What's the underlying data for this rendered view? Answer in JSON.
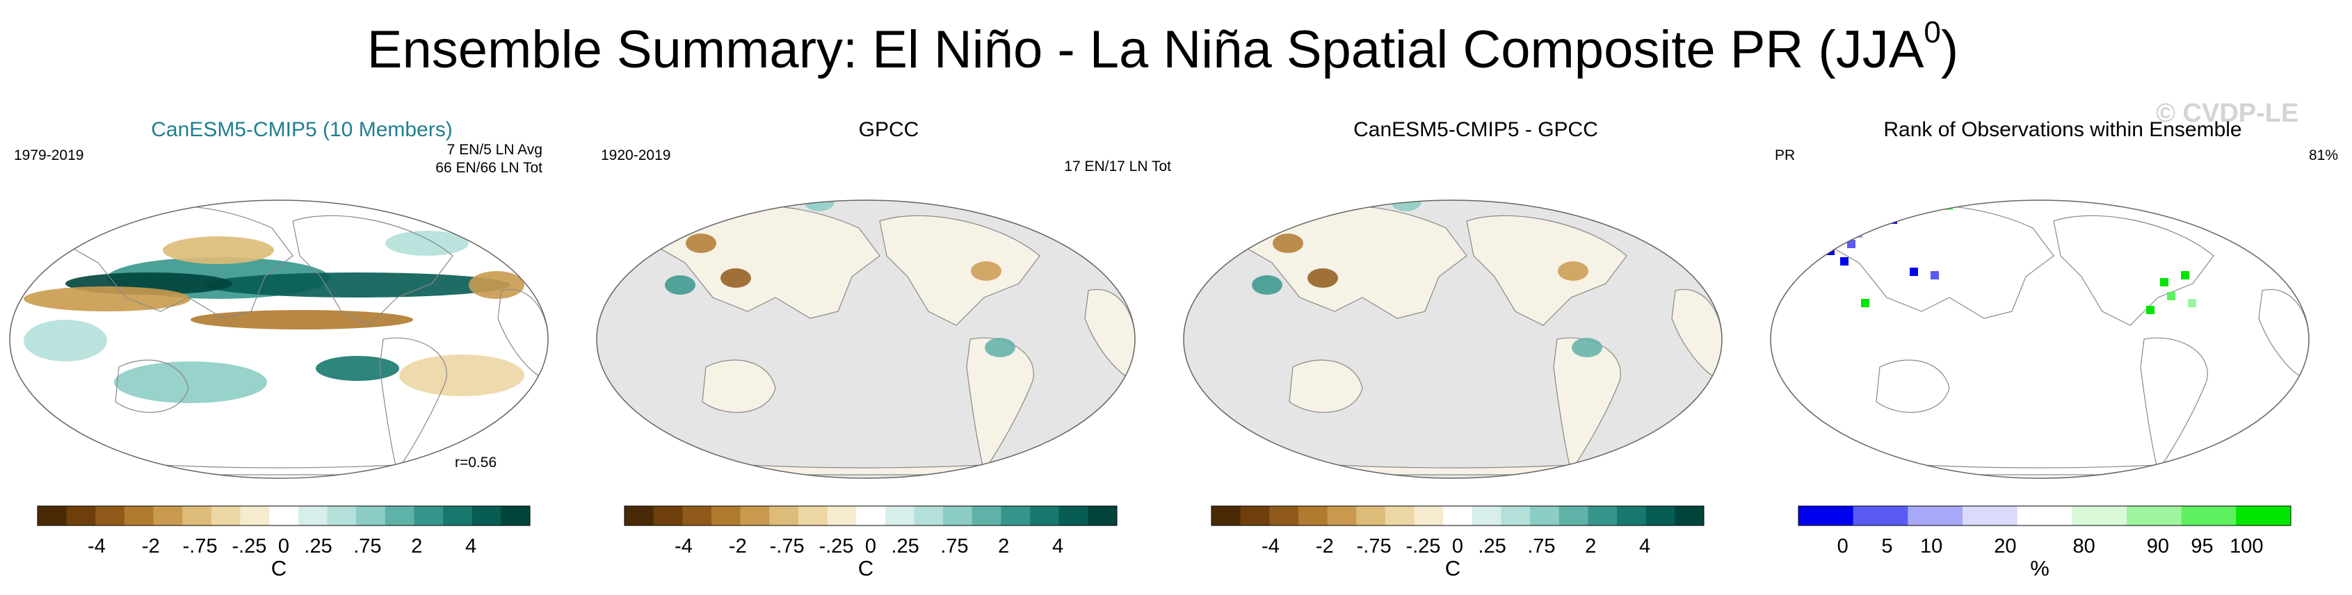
{
  "title_main": "Ensemble Summary: El Niño - La Niña Spatial Composite PR (JJA",
  "title_sup": "0",
  "title_close": ")",
  "copyright": "© CVDP-LE",
  "chart_data": [
    {
      "type": "heatmap",
      "title": "CanESM5-CMIP5 (10 Members)",
      "left_label": "1979-2019",
      "right_label_1": "7 EN/5 LN Avg",
      "right_label_2": "66 EN/66 LN Tot",
      "corr_label": "r=0.56",
      "colorbar_ticks": [
        "-4",
        "-2",
        "-.75",
        "-.25",
        "0",
        ".25",
        ".75",
        "2",
        "4"
      ],
      "colorbar_unit": "C",
      "colors": [
        "#4a2a06",
        "#6e3f0b",
        "#8f5a19",
        "#b07a2f",
        "#c99a4e",
        "#ddbb78",
        "#ecd6a3",
        "#f6ebcf",
        "#ffffff",
        "#d7eeeb",
        "#b4e0da",
        "#8ccdc5",
        "#5fb2a8",
        "#37968c",
        "#17786e",
        "#075c53",
        "#00443c"
      ]
    },
    {
      "type": "heatmap",
      "title": "GPCC",
      "left_label": "1920-2019",
      "right_label_1": "17 EN/17 LN Tot",
      "colorbar_ticks": [
        "-4",
        "-2",
        "-.75",
        "-.25",
        "0",
        ".25",
        ".75",
        "2",
        "4"
      ],
      "colorbar_unit": "C"
    },
    {
      "type": "heatmap",
      "title": "CanESM5-CMIP5 - GPCC",
      "colorbar_ticks": [
        "-4",
        "-2",
        "-.75",
        "-.25",
        "0",
        ".25",
        ".75",
        "2",
        "4"
      ],
      "colorbar_unit": "C"
    },
    {
      "type": "heatmap",
      "title": "Rank of Observations within Ensemble",
      "left_label": "PR",
      "right_label_1": "81%",
      "colorbar_ticks": [
        "0",
        "5",
        "10",
        "20",
        "80",
        "90",
        "95",
        "100"
      ],
      "colorbar_unit": "%",
      "colors": [
        "#0000f0",
        "#5a5af5",
        "#a8a8f8",
        "#dadafa",
        "#ffffff",
        "#d9f9d9",
        "#9ff59f",
        "#5ef05e",
        "#00e600"
      ]
    }
  ],
  "ocean_color": "#e5e5e5",
  "land_outline": "#888888"
}
